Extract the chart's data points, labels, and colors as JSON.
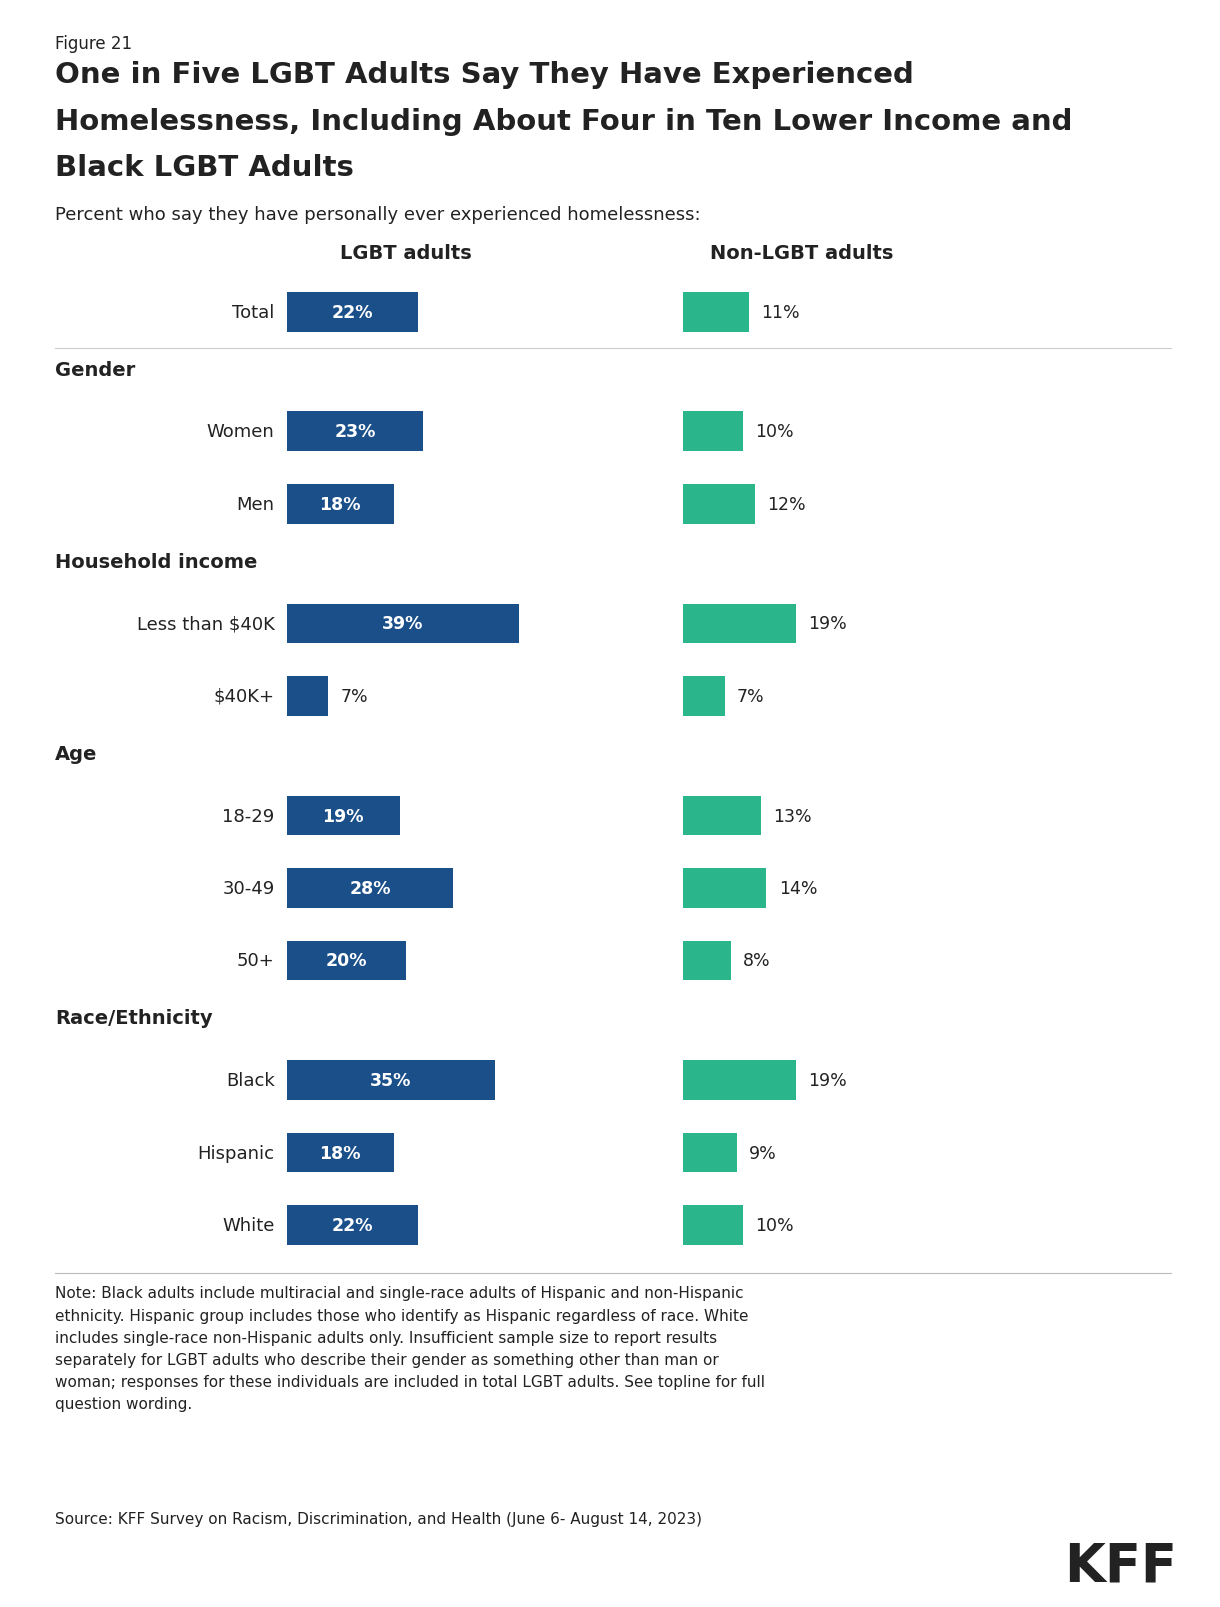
{
  "figure_label": "Figure 21",
  "title_line1": "One in Five LGBT Adults Say They Have Experienced",
  "title_line2": "Homelessness, Including About Four in Ten Lower Income and",
  "title_line3": "Black LGBT Adults",
  "subtitle": "Percent who say they have personally ever experienced homelessness:",
  "col1_header": "LGBT adults",
  "col2_header": "Non-LGBT adults",
  "lgbt_color": "#1a4f8a",
  "nonlgbt_color": "#2ab58a",
  "categories": [
    {
      "label": "Total",
      "type": "data",
      "lgbt": 22,
      "nonlgbt": 11
    },
    {
      "label": "Gender",
      "type": "header"
    },
    {
      "label": "Women",
      "type": "data",
      "lgbt": 23,
      "nonlgbt": 10
    },
    {
      "label": "Men",
      "type": "data",
      "lgbt": 18,
      "nonlgbt": 12
    },
    {
      "label": "Household income",
      "type": "header"
    },
    {
      "label": "Less than $40K",
      "type": "data",
      "lgbt": 39,
      "nonlgbt": 19
    },
    {
      "label": "$40K+",
      "type": "data",
      "lgbt": 7,
      "nonlgbt": 7
    },
    {
      "label": "Age",
      "type": "header"
    },
    {
      "label": "18-29",
      "type": "data",
      "lgbt": 19,
      "nonlgbt": 13
    },
    {
      "label": "30-49",
      "type": "data",
      "lgbt": 28,
      "nonlgbt": 14
    },
    {
      "label": "50+",
      "type": "data",
      "lgbt": 20,
      "nonlgbt": 8
    },
    {
      "label": "Race/Ethnicity",
      "type": "header"
    },
    {
      "label": "Black",
      "type": "data",
      "lgbt": 35,
      "nonlgbt": 19
    },
    {
      "label": "Hispanic",
      "type": "data",
      "lgbt": 18,
      "nonlgbt": 9
    },
    {
      "label": "White",
      "type": "data",
      "lgbt": 22,
      "nonlgbt": 10
    }
  ],
  "note_text": "Note: Black adults include multiracial and single-race adults of Hispanic and non-Hispanic\nethnicity. Hispanic group includes those who identify as Hispanic regardless of race. White\nincludes single-race non-Hispanic adults only. Insufficient sample size to report results\nseparately for LGBT adults who describe their gender as something other than man or\nwoman; responses for these individuals are included in total LGBT adults. See topline for full\nquestion wording.",
  "source_text": "Source: KFF Survey on Racism, Discrimination, and Health (June 6- August 14, 2023)",
  "background_color": "#ffffff",
  "text_color": "#222222",
  "max_bar_value": 40
}
